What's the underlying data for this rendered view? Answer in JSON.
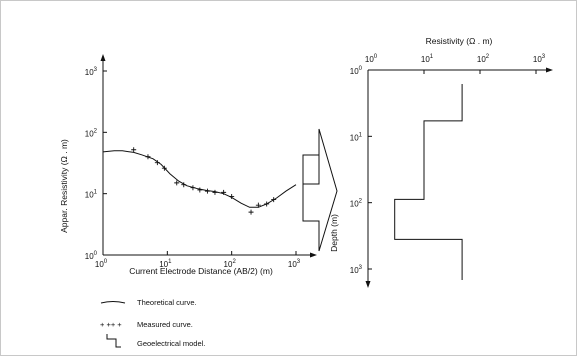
{
  "chart_data": [
    {
      "type": "scatter",
      "xscale": "log",
      "yscale": "log",
      "xlim": [
        1,
        1000
      ],
      "ylim": [
        1,
        1000
      ],
      "xlabel": "Current Electrode Distance (AB/2) (m)",
      "ylabel": "Appar. Resistivity (Ω . m)",
      "xticks": [
        {
          "exp": "0"
        },
        {
          "exp": "1"
        },
        {
          "exp": "2"
        },
        {
          "exp": "3"
        }
      ],
      "yticks": [
        {
          "exp": "0"
        },
        {
          "exp": "1"
        },
        {
          "exp": "2"
        },
        {
          "exp": "3"
        }
      ],
      "series": [
        {
          "name": "Theoretical curve.",
          "style": "line",
          "x": [
            1,
            1.5,
            2,
            3,
            4,
            6,
            8,
            11,
            15,
            20,
            30,
            40,
            55,
            75,
            100,
            140,
            190,
            260,
            350,
            500,
            700,
            1000
          ],
          "y": [
            48,
            50,
            50,
            47,
            43,
            37,
            30,
            21,
            16,
            13.5,
            12,
            11.3,
            10.8,
            10,
            8.7,
            7,
            6,
            6,
            6.8,
            8.5,
            11,
            14
          ]
        },
        {
          "name": "Measured curve.",
          "style": "markers",
          "x": [
            3,
            5,
            7,
            9,
            14,
            18,
            25,
            32,
            42,
            55,
            75,
            100,
            200,
            260,
            350,
            450
          ],
          "y": [
            52,
            40,
            32,
            26,
            15,
            14,
            12.5,
            11.5,
            11,
            10.5,
            10.5,
            9,
            5,
            6.5,
            6.8,
            8
          ]
        }
      ]
    },
    {
      "type": "line",
      "xscale": "log",
      "yscale": "log",
      "xlim": [
        1,
        1000
      ],
      "ylim": [
        1,
        1000
      ],
      "xlabel": "Resistivity (Ω . m)",
      "ylabel": "Depth (m)",
      "xticks": [
        {
          "exp": "0"
        },
        {
          "exp": "1"
        },
        {
          "exp": "2"
        },
        {
          "exp": "3"
        }
      ],
      "yticks": [
        {
          "exp": "0"
        },
        {
          "exp": "1"
        },
        {
          "exp": "2"
        },
        {
          "exp": "3"
        }
      ],
      "series": [
        {
          "name": "Geoelectrical model.",
          "layers": [
            {
              "resistivity": 48,
              "depth_top": 1,
              "depth_bottom": 3.6
            },
            {
              "resistivity": 10,
              "depth_top": 3.6,
              "depth_bottom": 55
            },
            {
              "resistivity": 3,
              "depth_top": 55,
              "depth_bottom": 220
            },
            {
              "resistivity": 48,
              "depth_top": 220,
              "depth_bottom": 900
            }
          ]
        }
      ]
    }
  ],
  "legend": {
    "theoretical": "Theoretical curve.",
    "measured_symbol": "+ ++ +",
    "measured": "Measured curve.",
    "model": "Geoelectrical model."
  },
  "tick_base": "10"
}
